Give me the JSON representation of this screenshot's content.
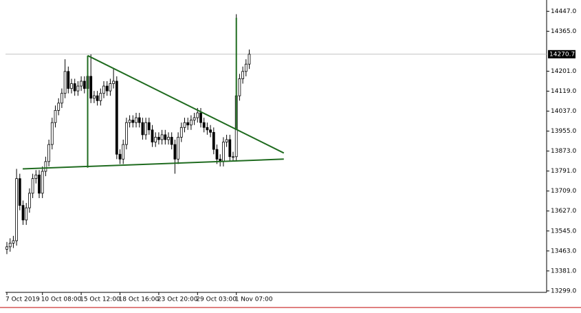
{
  "chart_data": {
    "type": "candlestick",
    "categories": [
      "7 Oct 2019",
      null,
      null,
      null,
      null,
      null,
      null,
      null,
      null,
      null,
      null,
      "10 Oct 08:00",
      null,
      null,
      null,
      null,
      null,
      null,
      null,
      null,
      null,
      null,
      null,
      "15 Oct 12:00",
      null,
      null,
      null,
      null,
      null,
      null,
      null,
      null,
      null,
      null,
      null,
      "18 Oct 16:00",
      null,
      null,
      null,
      null,
      null,
      null,
      null,
      null,
      null,
      null,
      null,
      "23 Oct 20:00",
      null,
      null,
      null,
      null,
      null,
      null,
      null,
      null,
      null,
      null,
      null,
      "29 Oct 03:00",
      null,
      null,
      null,
      null,
      null,
      null,
      null,
      null,
      null,
      null,
      null,
      "1 Nov 07:00",
      null,
      null,
      null,
      null
    ],
    "open": [
      13470,
      13480,
      13495,
      13505,
      13760,
      13650,
      13590,
      13640,
      13700,
      13760,
      13775,
      13700,
      13790,
      13830,
      13900,
      13990,
      14040,
      14070,
      14110,
      14200,
      14130,
      14150,
      14120,
      14140,
      14160,
      14130,
      14180,
      14090,
      14100,
      14080,
      14110,
      14140,
      14120,
      14150,
      14160,
      13860,
      13840,
      13900,
      13990,
      14000,
      13990,
      14010,
      13990,
      13940,
      13990,
      13960,
      13910,
      13930,
      13920,
      13940,
      13920,
      13930,
      13900,
      13840,
      13930,
      13970,
      13990,
      13980,
      14000,
      14010,
      14030,
      13990,
      13970,
      13960,
      13950,
      13880,
      13840,
      13830,
      13910,
      13920,
      13850,
      13850,
      14100,
      14170,
      14200,
      14230
    ],
    "high": [
      13500,
      13515,
      13525,
      13800,
      13780,
      13670,
      13660,
      13720,
      13780,
      13795,
      13795,
      13810,
      13850,
      13920,
      14010,
      14060,
      14090,
      14130,
      14250,
      14220,
      14170,
      14170,
      14160,
      14180,
      14180,
      14200,
      14270,
      14120,
      14120,
      14130,
      14160,
      14160,
      14170,
      14210,
      14180,
      13880,
      13920,
      14010,
      14020,
      14020,
      14030,
      14030,
      14010,
      14010,
      14010,
      13980,
      13950,
      13950,
      13960,
      13960,
      13950,
      13950,
      13920,
      13950,
      13990,
      14010,
      14010,
      14020,
      14030,
      14050,
      14050,
      14010,
      13990,
      13980,
      13970,
      13900,
      13860,
      13930,
      13940,
      13940,
      13870,
      14435,
      14190,
      14220,
      14250,
      14290
    ],
    "low": [
      13450,
      13460,
      13475,
      13485,
      13630,
      13570,
      13570,
      13620,
      13680,
      13740,
      13680,
      13680,
      13770,
      13810,
      13880,
      13970,
      14020,
      14050,
      14090,
      14110,
      14110,
      14100,
      14100,
      14120,
      14110,
      14110,
      14070,
      14070,
      14060,
      14060,
      14090,
      14100,
      14100,
      14130,
      13840,
      13820,
      13820,
      13880,
      13970,
      13970,
      13970,
      13970,
      13920,
      13920,
      13940,
      13890,
      13890,
      13900,
      13900,
      13900,
      13900,
      13880,
      13780,
      13820,
      13910,
      13950,
      13960,
      13960,
      13980,
      13990,
      13970,
      13950,
      13940,
      13930,
      13860,
      13820,
      13810,
      13810,
      13890,
      13830,
      13830,
      13830,
      14080,
      14150,
      14180,
      14210
    ],
    "close": [
      13480,
      13495,
      13505,
      13760,
      13650,
      13590,
      13640,
      13700,
      13760,
      13775,
      13700,
      13790,
      13830,
      13900,
      13990,
      14040,
      14070,
      14110,
      14200,
      14130,
      14150,
      14120,
      14140,
      14160,
      14130,
      14180,
      14090,
      14100,
      14080,
      14110,
      14140,
      14120,
      14150,
      14160,
      13860,
      13840,
      13900,
      13990,
      14000,
      13990,
      14010,
      13990,
      13940,
      13990,
      13960,
      13910,
      13930,
      13920,
      13940,
      13920,
      13930,
      13900,
      13840,
      13930,
      13970,
      13990,
      13980,
      14000,
      14010,
      14030,
      13990,
      13970,
      13960,
      13950,
      13880,
      13840,
      13830,
      13910,
      13920,
      13850,
      13850,
      14100,
      14170,
      14200,
      14230,
      14270.7
    ],
    "ylim": [
      13293,
      14465
    ],
    "yticks": [
      {
        "value": 13299,
        "label": "13299.0"
      },
      {
        "value": 13381,
        "label": "13381.0"
      },
      {
        "value": 13463,
        "label": "13463.0"
      },
      {
        "value": 13545,
        "label": "13545.0"
      },
      {
        "value": 13627,
        "label": "13627.0"
      },
      {
        "value": 13709,
        "label": "13709.0"
      },
      {
        "value": 13791,
        "label": "13791.0"
      },
      {
        "value": 13873,
        "label": "13873.0"
      },
      {
        "value": 13955,
        "label": "13955.0"
      },
      {
        "value": 14037,
        "label": "14037.0"
      },
      {
        "value": 14119,
        "label": "14119.0"
      },
      {
        "value": 14201,
        "label": "14201.0"
      },
      {
        "value": 14365,
        "label": "14365.0"
      },
      {
        "value": 14447,
        "label": "14447.0"
      }
    ],
    "current_price": {
      "value": 14270.7,
      "label": "14270.7"
    },
    "trendline_color": "#1f6b1f",
    "trendlines": [
      {
        "from": [
          25,
          14265
        ],
        "to": [
          85.7,
          13865
        ]
      },
      {
        "from": [
          4.9,
          13800
        ],
        "to": [
          85.7,
          13840
        ]
      },
      {
        "from": [
          25,
          14265
        ],
        "to": [
          25,
          13805
        ]
      },
      {
        "from": [
          71,
          14420
        ],
        "to": [
          71,
          13960
        ]
      }
    ]
  }
}
